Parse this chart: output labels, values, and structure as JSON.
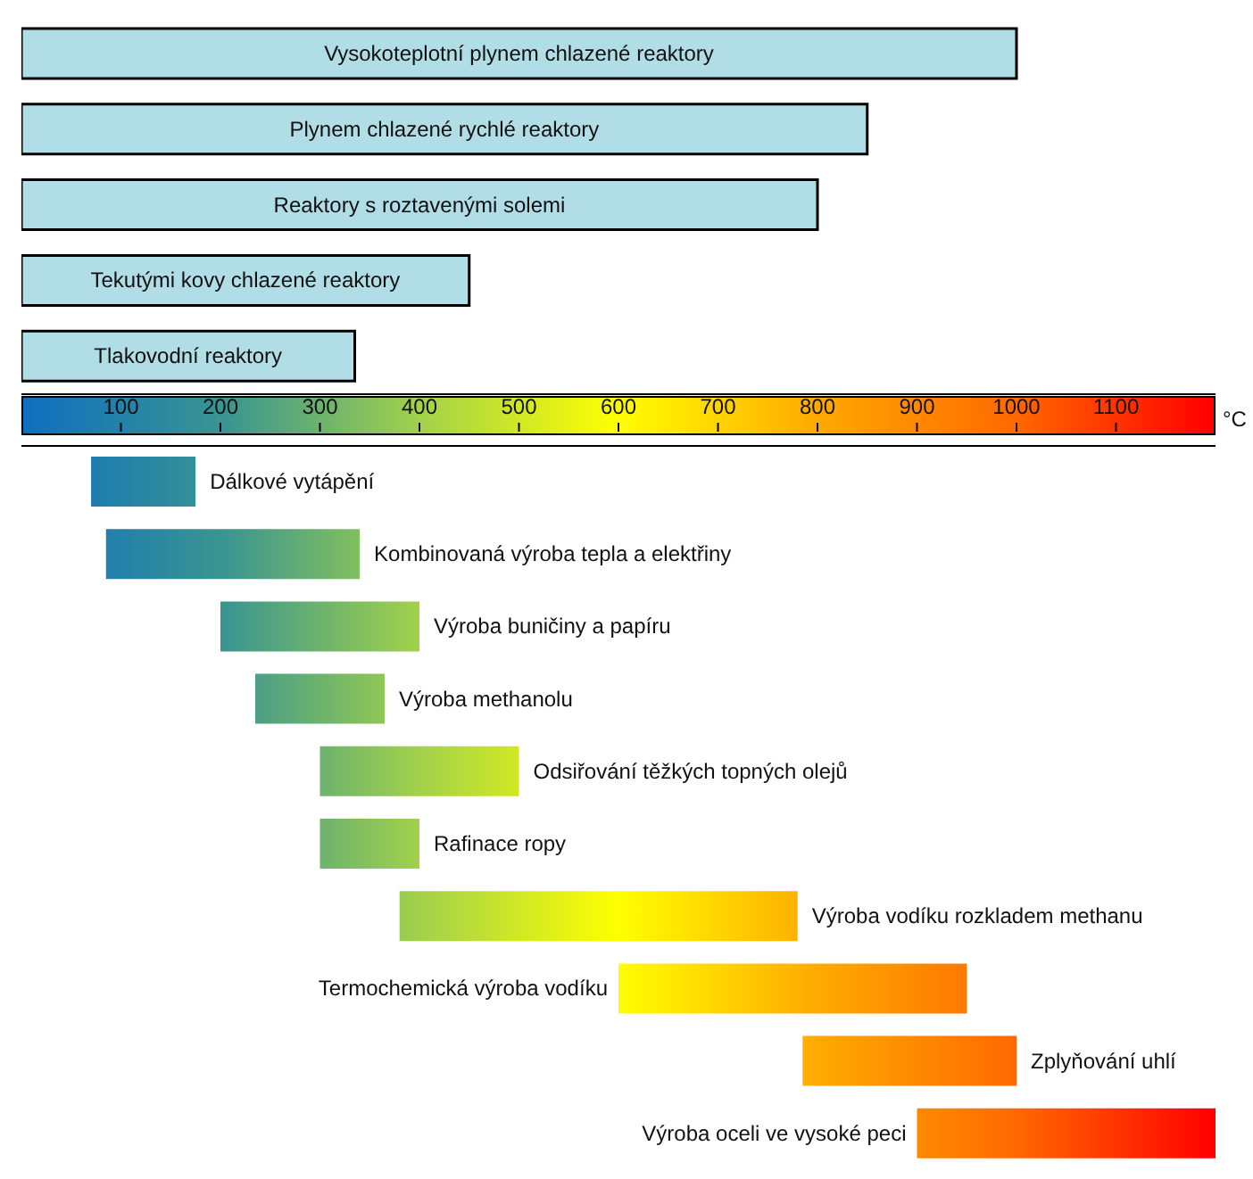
{
  "chart_data": [
    {
      "type": "bar",
      "orientation": "horizontal",
      "categories": [
        "Vysokoteplotní plynem chlazené reaktory",
        "Plynem chlazené rychlé reaktory",
        "Reaktory s roztavenými solemi",
        "Tekutými kovy chlazené reaktory",
        "Tlakovodní reaktory"
      ],
      "base": [
        0,
        0,
        0,
        0,
        0
      ],
      "values": [
        1000,
        850,
        800,
        450,
        335
      ],
      "color": "#b0dde6",
      "xlim": [
        0,
        1200
      ],
      "xticks": [
        100,
        200,
        300,
        400,
        500,
        600,
        700,
        800,
        900,
        1000,
        1100
      ],
      "tick_labels": false
    },
    {
      "type": "bar",
      "orientation": "horizontal",
      "categories": [
        "Dálkové vytápění",
        "Kombinovaná výroba tepla a elektřiny",
        "Výroba buničiny a papíru",
        "Výroba methanolu",
        "Odsiřování těžkých topných olejů",
        "Rafinace ropy",
        "Výroba vodíku rozkladem methanu",
        "Termochemická výroba vodíku",
        "Zplyňování uhlí",
        "Výroba oceli ve vysoké peci"
      ],
      "base": [
        70,
        85,
        200,
        235,
        300,
        300,
        380,
        600,
        785,
        900
      ],
      "values": [
        105,
        255,
        200,
        130,
        200,
        100,
        400,
        350,
        215,
        300
      ],
      "xlim": [
        0,
        1200
      ],
      "xticks": [
        100,
        200,
        300,
        400,
        500,
        600,
        700,
        800,
        900,
        1000,
        1100
      ],
      "xlabel": "°C"
    }
  ]
}
